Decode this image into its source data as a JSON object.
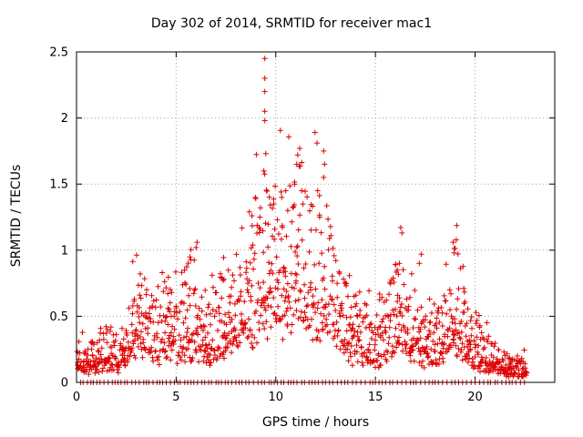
{
  "chart_data": {
    "type": "scatter",
    "title": "Day 302 of 2014, SRMTID for receiver mac1",
    "xlabel": "GPS time / hours",
    "ylabel": "SRMTID / TECUs",
    "xlim": [
      0,
      24
    ],
    "ylim": [
      0,
      2.5
    ],
    "xticks": [
      0,
      5,
      10,
      15,
      20
    ],
    "xtick_labels": [
      "0",
      "5",
      "10",
      "15",
      "20"
    ],
    "yticks": [
      0,
      0.5,
      1,
      1.5,
      2,
      2.5
    ],
    "ytick_labels": [
      "0",
      "0.5",
      "1",
      "1.5",
      "2",
      "2.5"
    ],
    "grid": true,
    "series": [
      {
        "name": "SRMTID",
        "color": "#dd0000",
        "marker": "plus",
        "envelope": [
          [
            0.0,
            0.13
          ],
          [
            0.5,
            0.18
          ],
          [
            1.0,
            0.15
          ],
          [
            1.5,
            0.22
          ],
          [
            2.0,
            0.17
          ],
          [
            2.5,
            0.28
          ],
          [
            3.0,
            0.45
          ],
          [
            3.5,
            0.38
          ],
          [
            4.0,
            0.33
          ],
          [
            4.5,
            0.42
          ],
          [
            5.0,
            0.35
          ],
          [
            5.5,
            0.42
          ],
          [
            6.0,
            0.4
          ],
          [
            6.5,
            0.35
          ],
          [
            7.0,
            0.36
          ],
          [
            7.5,
            0.45
          ],
          [
            8.0,
            0.48
          ],
          [
            8.5,
            0.58
          ],
          [
            9.0,
            0.75
          ],
          [
            9.5,
            0.85
          ],
          [
            10.0,
            0.78
          ],
          [
            10.5,
            0.8
          ],
          [
            11.0,
            0.85
          ],
          [
            11.5,
            0.78
          ],
          [
            12.0,
            0.8
          ],
          [
            12.5,
            0.72
          ],
          [
            13.0,
            0.55
          ],
          [
            13.5,
            0.4
          ],
          [
            14.0,
            0.32
          ],
          [
            14.5,
            0.3
          ],
          [
            15.0,
            0.28
          ],
          [
            15.5,
            0.35
          ],
          [
            16.0,
            0.5
          ],
          [
            16.5,
            0.45
          ],
          [
            17.0,
            0.35
          ],
          [
            17.5,
            0.28
          ],
          [
            18.0,
            0.25
          ],
          [
            18.5,
            0.35
          ],
          [
            19.0,
            0.5
          ],
          [
            19.5,
            0.35
          ],
          [
            20.0,
            0.25
          ],
          [
            20.5,
            0.2
          ],
          [
            21.0,
            0.16
          ],
          [
            21.5,
            0.12
          ],
          [
            22.0,
            0.1
          ],
          [
            22.6,
            0.1
          ]
        ],
        "peaks": [
          [
            9.45,
            2.45
          ],
          [
            9.45,
            2.3
          ],
          [
            9.45,
            2.2
          ],
          [
            9.45,
            2.05
          ],
          [
            9.45,
            1.98
          ],
          [
            9.5,
            1.73
          ],
          [
            9.4,
            1.6
          ],
          [
            11.2,
            1.77
          ],
          [
            11.1,
            1.72
          ],
          [
            11.05,
            1.65
          ],
          [
            10.95,
            1.5
          ],
          [
            11.3,
            1.45
          ],
          [
            12.4,
            1.75
          ],
          [
            12.45,
            1.65
          ],
          [
            12.4,
            1.55
          ],
          [
            12.1,
            1.45
          ],
          [
            12.2,
            1.25
          ],
          [
            10.5,
            1.45
          ],
          [
            10.3,
            1.4
          ],
          [
            9.9,
            1.35
          ],
          [
            10.6,
            1.3
          ],
          [
            8.8,
            1.26
          ],
          [
            9.2,
            1.25
          ],
          [
            6.05,
            1.06
          ],
          [
            6.0,
            1.02
          ],
          [
            18.9,
            1.06
          ],
          [
            18.95,
            0.98
          ],
          [
            17.3,
            0.97
          ],
          [
            17.2,
            0.9
          ],
          [
            16.2,
            0.9
          ],
          [
            16.1,
            0.85
          ],
          [
            3.2,
            0.82
          ],
          [
            4.3,
            0.83
          ],
          [
            7.4,
            0.78
          ]
        ],
        "zero_range": [
          0.2,
          22.6
        ]
      }
    ]
  }
}
